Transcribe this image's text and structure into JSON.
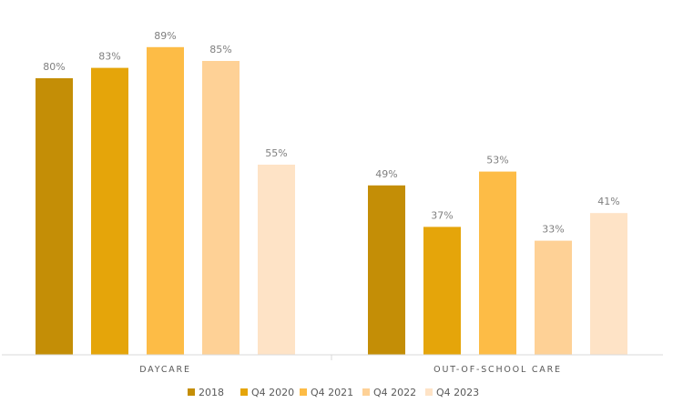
{
  "chart_data": {
    "type": "bar",
    "categories": [
      "DAYCARE",
      "OUT-OF-SCHOOL CARE"
    ],
    "series": [
      {
        "name": "2018",
        "color": "#C48E06",
        "values": [
          80,
          49
        ]
      },
      {
        "name": "Q4 2020",
        "color": "#E5A50A",
        "values": [
          83,
          37
        ]
      },
      {
        "name": "Q4 2021",
        "color": "#FDBC46",
        "values": [
          89,
          53
        ]
      },
      {
        "name": "Q4 2022",
        "color": "#FED196",
        "values": [
          85,
          33
        ]
      },
      {
        "name": "Q4 2023",
        "color": "#FEE3C6",
        "values": [
          55,
          41
        ]
      }
    ],
    "value_suffix": "%",
    "ylim": [
      0,
      100
    ],
    "grid": false,
    "legend_position": "bottom",
    "data_labels": true
  }
}
